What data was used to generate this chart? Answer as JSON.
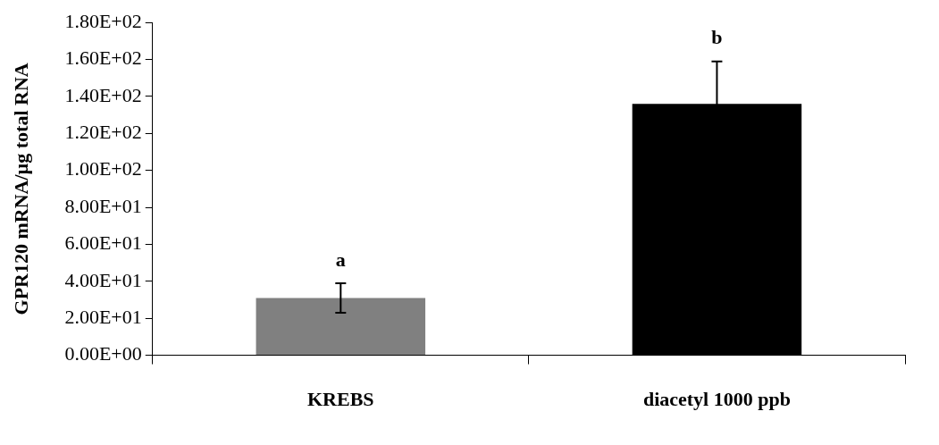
{
  "chart_data": {
    "type": "bar",
    "ylabel": "GPR120 mRNA/µg total RNA",
    "categories": [
      "KREBS",
      "diacetyl 1000 ppb"
    ],
    "values": [
      31,
      136
    ],
    "colors": [
      "#808080",
      "#000000"
    ],
    "errors": [
      8,
      23
    ],
    "ylim": [
      0,
      180
    ],
    "yticks": [
      {
        "value": 0,
        "label": "0.00E+00"
      },
      {
        "value": 20,
        "label": "2.00E+01"
      },
      {
        "value": 40,
        "label": "4.00E+01"
      },
      {
        "value": 60,
        "label": "6.00E+01"
      },
      {
        "value": 80,
        "label": "8.00E+01"
      },
      {
        "value": 100,
        "label": "1.00E+02"
      },
      {
        "value": 120,
        "label": "1.20E+02"
      },
      {
        "value": 140,
        "label": "1.40E+02"
      },
      {
        "value": 160,
        "label": "1.60E+02"
      },
      {
        "value": 180,
        "label": "1.80E+02"
      }
    ],
    "annotations": [
      "a",
      "b"
    ],
    "grid": false,
    "legend": false
  }
}
